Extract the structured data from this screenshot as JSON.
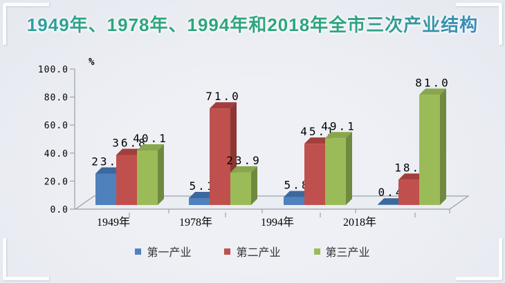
{
  "title": "1949年、1978年、1994年和2018年全市三次产业结构",
  "chart_data": {
    "type": "bar",
    "style": "3d-clustered-column",
    "title": "1949年、1978年、1994年和2018年全市三次产业结构",
    "unit_label": "%",
    "categories": [
      "1949年",
      "1978年",
      "1994年",
      "2018年"
    ],
    "series": [
      {
        "name": "第一产业",
        "color": "#4f81bd",
        "color_top": "#3d689e",
        "color_side": "#355a8e",
        "values": [
          23.1,
          5.1,
          5.8,
          0.4
        ]
      },
      {
        "name": "第二产业",
        "color": "#c0504d",
        "color_top": "#a23f3c",
        "color_side": "#8d3734",
        "values": [
          36.8,
          71.0,
          45.1,
          18.6
        ]
      },
      {
        "name": "第三产业",
        "color": "#9bbb59",
        "color_top": "#88a64c",
        "color_side": "#6f8a3e",
        "values": [
          40.1,
          23.9,
          49.1,
          81.0
        ]
      }
    ],
    "ylim": [
      0,
      100
    ],
    "ytick_labels": [
      "0.0",
      "20.0",
      "40.0",
      "60.0",
      "80.0",
      "100.0"
    ],
    "value_label_decimals": 1,
    "grid": false,
    "legend_position": "bottom",
    "axis_color": "#9aa0a8",
    "label_color": "#000000"
  }
}
